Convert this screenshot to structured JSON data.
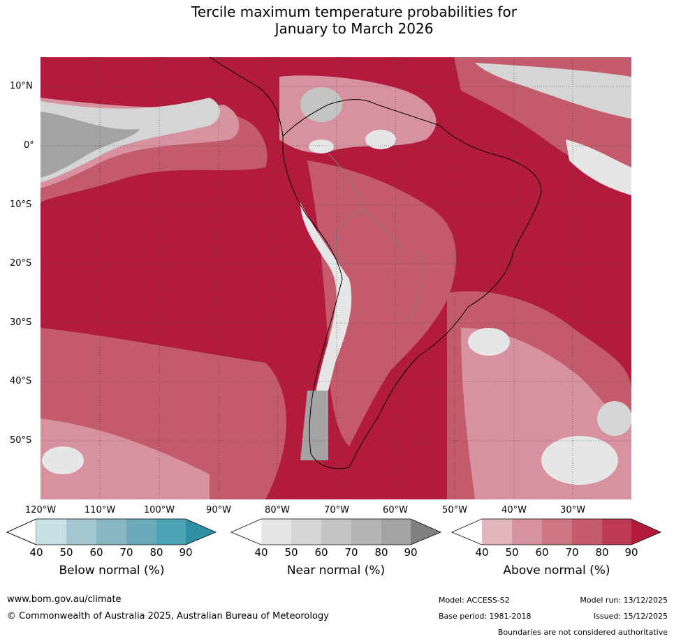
{
  "title": {
    "line1": "Tercile maximum temperature probabilities for",
    "line2": "January to March 2026"
  },
  "map": {
    "latitude_labels": [
      "10°N",
      "0°",
      "10°S",
      "20°S",
      "30°S",
      "40°S",
      "50°S"
    ],
    "longitude_labels": [
      "120°W",
      "110°W",
      "100°W",
      "90°W",
      "80°W",
      "70°W",
      "60°W",
      "50°W",
      "40°W",
      "30°W"
    ]
  },
  "colorbars": [
    {
      "title": "Below normal (%)",
      "ticks": [
        "40",
        "50",
        "60",
        "70",
        "80",
        "90"
      ],
      "colors": [
        "#ffffff",
        "#c8e0e6",
        "#a4c7ce",
        "#88b6c2",
        "#6aaab8",
        "#4ea3b4",
        "#2f8fa3"
      ]
    },
    {
      "title": "Near normal (%)",
      "ticks": [
        "40",
        "50",
        "60",
        "70",
        "80",
        "90"
      ],
      "colors": [
        "#ffffff",
        "#e6e6e6",
        "#d5d5d5",
        "#c4c4c4",
        "#b4b4b4",
        "#a3a3a3",
        "#808080"
      ]
    },
    {
      "title": "Above normal (%)",
      "ticks": [
        "40",
        "50",
        "60",
        "70",
        "80",
        "90"
      ],
      "colors": [
        "#ffffff",
        "#e3b5bd",
        "#d8929f",
        "#cf7685",
        "#c45b6c",
        "#bc3a52",
        "#b31b3c"
      ]
    }
  ],
  "footer": {
    "website": "www.bom.gov.au/climate",
    "copyright": "© Commonwealth of Australia 2025, Australian Bureau of Meteorology",
    "model": "Model: ACCESS-S2",
    "base_period": "Base period: 1981-2018",
    "model_run": "Model run: 13/12/2025",
    "issued": "Issued: 15/12/2025",
    "disclaimer": "Boundaries are not considered authoritative"
  }
}
